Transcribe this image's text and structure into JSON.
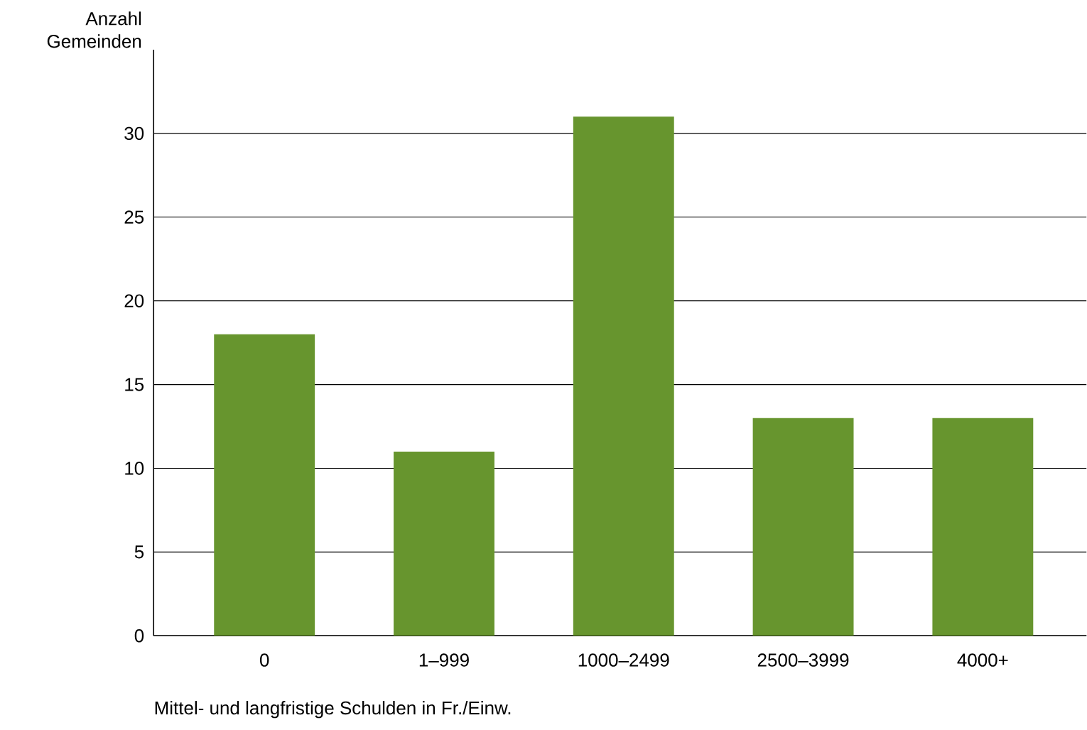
{
  "chart_data": {
    "type": "bar",
    "ylabel": "Anzahl Gemeinden",
    "xlabel": "Mittel- und langfristige Schulden in Fr./Einw.",
    "categories": [
      "0",
      "1–999",
      "1000–2499",
      "2500–3999",
      "4000+"
    ],
    "values": [
      18,
      11,
      31,
      13,
      13
    ],
    "color": "#67952e",
    "ylim": [
      0,
      35
    ],
    "yticks": [
      0,
      5,
      10,
      15,
      20,
      25,
      30
    ],
    "grid": "y"
  }
}
